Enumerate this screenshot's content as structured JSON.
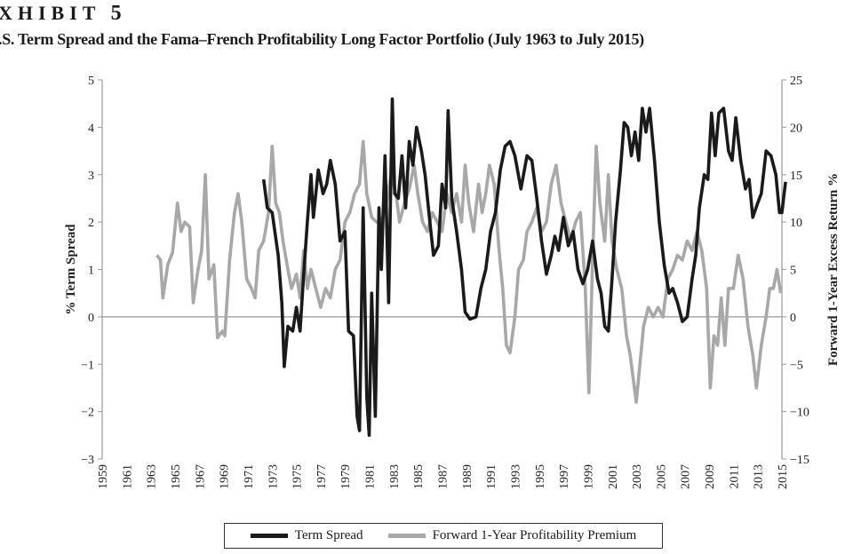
{
  "header": {
    "exhibit_label": "XHIBIT",
    "exhibit_number": "5",
    "title": ".S. Term Spread and the Fama–French Profitability Long Factor Portfolio (July 1963 to July 2015)"
  },
  "colors": {
    "term_spread": "#1a1a1a",
    "profitability": "#a8a8a8",
    "axis": "#999999"
  },
  "chart_data": {
    "type": "line",
    "title": "",
    "xlabel": "",
    "ylabel_left": "% Term Spread",
    "ylabel_right": "Forward 1-Year Excess Return %",
    "xlim": [
      1959,
      2015
    ],
    "ylim_left": [
      -3,
      5
    ],
    "ylim_right": [
      -15,
      25
    ],
    "x_ticks": [
      "1959",
      "1961",
      "1963",
      "1965",
      "1967",
      "1969",
      "1971",
      "1973",
      "1975",
      "1977",
      "1979",
      "1981",
      "1983",
      "1985",
      "1987",
      "1989",
      "1991",
      "1993",
      "1995",
      "1997",
      "1999",
      "2001",
      "2003",
      "2005",
      "2007",
      "2009",
      "2011",
      "2013",
      "2015"
    ],
    "y_ticks_left": [
      "5",
      "4",
      "3",
      "2",
      "1",
      "0",
      "−1",
      "−2",
      "−3"
    ],
    "y_ticks_right": [
      "25",
      "20",
      "15",
      "10",
      "5",
      "0",
      "−5",
      "−10",
      "−15"
    ],
    "grid": false,
    "zero_line": true,
    "legend_placement": "bottom",
    "series": [
      {
        "name": "Term Spread",
        "axis": "left",
        "color": "#1a1a1a",
        "points": [
          [
            1972.3,
            2.9
          ],
          [
            1972.6,
            2.3
          ],
          [
            1973.0,
            2.2
          ],
          [
            1973.5,
            1.3
          ],
          [
            1973.8,
            0.3
          ],
          [
            1974.0,
            -1.05
          ],
          [
            1974.3,
            -0.2
          ],
          [
            1974.7,
            -0.3
          ],
          [
            1975.0,
            0.2
          ],
          [
            1975.3,
            -0.3
          ],
          [
            1975.6,
            0.9
          ],
          [
            1975.9,
            2.0
          ],
          [
            1976.2,
            3.0
          ],
          [
            1976.4,
            2.1
          ],
          [
            1976.8,
            3.1
          ],
          [
            1977.2,
            2.6
          ],
          [
            1977.5,
            2.8
          ],
          [
            1977.8,
            3.3
          ],
          [
            1978.2,
            2.8
          ],
          [
            1978.6,
            1.6
          ],
          [
            1979.0,
            1.8
          ],
          [
            1979.3,
            -0.3
          ],
          [
            1979.7,
            -0.4
          ],
          [
            1980.0,
            -2.1
          ],
          [
            1980.2,
            -2.4
          ],
          [
            1980.5,
            2.3
          ],
          [
            1980.8,
            -1.7
          ],
          [
            1981.0,
            -2.5
          ],
          [
            1981.2,
            0.5
          ],
          [
            1981.5,
            -2.1
          ],
          [
            1981.8,
            2.3
          ],
          [
            1982.0,
            1.0
          ],
          [
            1982.3,
            3.4
          ],
          [
            1982.6,
            0.3
          ],
          [
            1982.9,
            4.6
          ],
          [
            1983.1,
            2.6
          ],
          [
            1983.4,
            2.5
          ],
          [
            1983.7,
            3.4
          ],
          [
            1984.0,
            2.3
          ],
          [
            1984.3,
            3.7
          ],
          [
            1984.6,
            3.2
          ],
          [
            1984.9,
            4.0
          ],
          [
            1985.3,
            3.5
          ],
          [
            1985.6,
            3.0
          ],
          [
            1986.0,
            2.0
          ],
          [
            1986.3,
            1.3
          ],
          [
            1986.7,
            1.5
          ],
          [
            1987.0,
            2.8
          ],
          [
            1987.3,
            2.3
          ],
          [
            1987.5,
            4.35
          ],
          [
            1987.8,
            2.5
          ],
          [
            1988.2,
            1.8
          ],
          [
            1988.6,
            1.0
          ],
          [
            1988.9,
            0.1
          ],
          [
            1989.3,
            -0.05
          ],
          [
            1989.8,
            0.0
          ],
          [
            1990.2,
            0.6
          ],
          [
            1990.6,
            1.0
          ],
          [
            1991.0,
            1.8
          ],
          [
            1991.4,
            2.2
          ],
          [
            1991.8,
            3.1
          ],
          [
            1992.2,
            3.6
          ],
          [
            1992.6,
            3.7
          ],
          [
            1993.0,
            3.4
          ],
          [
            1993.5,
            2.7
          ],
          [
            1994.0,
            3.4
          ],
          [
            1994.4,
            3.3
          ],
          [
            1994.8,
            2.5
          ],
          [
            1995.2,
            1.6
          ],
          [
            1995.6,
            0.9
          ],
          [
            1996.0,
            1.3
          ],
          [
            1996.3,
            1.7
          ],
          [
            1996.6,
            1.4
          ],
          [
            1997.0,
            2.1
          ],
          [
            1997.4,
            1.5
          ],
          [
            1997.8,
            1.8
          ],
          [
            1998.2,
            1.0
          ],
          [
            1998.6,
            0.7
          ],
          [
            1999.0,
            1.0
          ],
          [
            1999.4,
            1.6
          ],
          [
            1999.8,
            0.8
          ],
          [
            2000.1,
            0.5
          ],
          [
            2000.4,
            -0.2
          ],
          [
            2000.7,
            -0.3
          ],
          [
            2001.0,
            0.8
          ],
          [
            2001.3,
            2.0
          ],
          [
            2001.7,
            3.1
          ],
          [
            2002.0,
            4.1
          ],
          [
            2002.3,
            4.0
          ],
          [
            2002.6,
            3.4
          ],
          [
            2002.9,
            3.9
          ],
          [
            2003.2,
            3.3
          ],
          [
            2003.5,
            4.4
          ],
          [
            2003.8,
            3.9
          ],
          [
            2004.1,
            4.4
          ],
          [
            2004.5,
            3.3
          ],
          [
            2004.9,
            2.0
          ],
          [
            2005.3,
            1.1
          ],
          [
            2005.7,
            0.5
          ],
          [
            2006.0,
            0.6
          ],
          [
            2006.4,
            0.3
          ],
          [
            2006.8,
            -0.1
          ],
          [
            2007.2,
            0.0
          ],
          [
            2007.6,
            0.8
          ],
          [
            2007.9,
            1.3
          ],
          [
            2008.2,
            2.3
          ],
          [
            2008.6,
            3.0
          ],
          [
            2008.9,
            2.9
          ],
          [
            2009.2,
            4.3
          ],
          [
            2009.5,
            3.4
          ],
          [
            2009.8,
            4.3
          ],
          [
            2010.2,
            4.4
          ],
          [
            2010.6,
            3.5
          ],
          [
            2010.9,
            3.3
          ],
          [
            2011.2,
            4.2
          ],
          [
            2011.6,
            3.3
          ],
          [
            2012.0,
            2.7
          ],
          [
            2012.3,
            2.9
          ],
          [
            2012.6,
            2.1
          ],
          [
            2013.0,
            2.4
          ],
          [
            2013.3,
            2.6
          ],
          [
            2013.7,
            3.5
          ],
          [
            2014.1,
            3.4
          ],
          [
            2014.5,
            3.0
          ],
          [
            2014.8,
            2.2
          ],
          [
            2015.0,
            2.2
          ],
          [
            2015.3,
            2.85
          ]
        ]
      },
      {
        "name": "Forward 1-Year Profitability Premium",
        "axis": "right",
        "color": "#a8a8a8",
        "points": [
          [
            1963.5,
            6.5
          ],
          [
            1963.8,
            6
          ],
          [
            1964.0,
            2
          ],
          [
            1964.4,
            5.5
          ],
          [
            1964.8,
            6.8
          ],
          [
            1965.2,
            12
          ],
          [
            1965.5,
            9
          ],
          [
            1965.8,
            10
          ],
          [
            1966.2,
            9.5
          ],
          [
            1966.5,
            1.5
          ],
          [
            1966.9,
            5
          ],
          [
            1967.2,
            7
          ],
          [
            1967.5,
            15
          ],
          [
            1967.8,
            4
          ],
          [
            1968.2,
            5.5
          ],
          [
            1968.5,
            -2.2
          ],
          [
            1968.9,
            -1.5
          ],
          [
            1969.1,
            -2
          ],
          [
            1969.5,
            6
          ],
          [
            1969.9,
            11
          ],
          [
            1970.2,
            13
          ],
          [
            1970.5,
            10
          ],
          [
            1970.9,
            4
          ],
          [
            1971.3,
            3
          ],
          [
            1971.6,
            2
          ],
          [
            1971.9,
            7
          ],
          [
            1972.3,
            8
          ],
          [
            1972.7,
            11
          ],
          [
            1973.0,
            18
          ],
          [
            1973.3,
            12
          ],
          [
            1973.6,
            11
          ],
          [
            1973.9,
            8
          ],
          [
            1974.3,
            5
          ],
          [
            1974.6,
            3
          ],
          [
            1975.0,
            4.5
          ],
          [
            1975.3,
            2
          ],
          [
            1975.6,
            7
          ],
          [
            1975.9,
            3
          ],
          [
            1976.2,
            5
          ],
          [
            1976.6,
            3
          ],
          [
            1977.0,
            1
          ],
          [
            1977.4,
            3
          ],
          [
            1977.8,
            2
          ],
          [
            1978.2,
            5
          ],
          [
            1978.6,
            6
          ],
          [
            1979.0,
            10
          ],
          [
            1979.4,
            11
          ],
          [
            1979.8,
            13
          ],
          [
            1980.2,
            14
          ],
          [
            1980.5,
            18.5
          ],
          [
            1980.8,
            13
          ],
          [
            1981.2,
            10.5
          ],
          [
            1981.6,
            10
          ],
          [
            1982.0,
            10
          ],
          [
            1982.4,
            12
          ],
          [
            1982.8,
            15
          ],
          [
            1983.2,
            13
          ],
          [
            1983.5,
            10
          ],
          [
            1983.9,
            12
          ],
          [
            1984.3,
            13.5
          ],
          [
            1984.7,
            16
          ],
          [
            1985.0,
            13
          ],
          [
            1985.4,
            10
          ],
          [
            1985.8,
            9
          ],
          [
            1986.2,
            11
          ],
          [
            1986.6,
            10
          ],
          [
            1987.0,
            9
          ],
          [
            1987.4,
            13
          ],
          [
            1987.8,
            11
          ],
          [
            1988.2,
            13
          ],
          [
            1988.6,
            10
          ],
          [
            1988.9,
            16
          ],
          [
            1989.2,
            12
          ],
          [
            1989.6,
            9
          ],
          [
            1990.0,
            14
          ],
          [
            1990.3,
            11
          ],
          [
            1990.6,
            13
          ],
          [
            1990.9,
            16
          ],
          [
            1991.3,
            14
          ],
          [
            1991.7,
            7
          ],
          [
            1992.0,
            3
          ],
          [
            1992.3,
            -3
          ],
          [
            1992.6,
            -3.8
          ],
          [
            1993.0,
            0
          ],
          [
            1993.3,
            5
          ],
          [
            1993.7,
            6
          ],
          [
            1994.0,
            9
          ],
          [
            1994.4,
            10
          ],
          [
            1994.8,
            11.5
          ],
          [
            1995.2,
            9
          ],
          [
            1995.6,
            10
          ],
          [
            1996.0,
            14
          ],
          [
            1996.4,
            16
          ],
          [
            1996.8,
            12
          ],
          [
            1997.2,
            10
          ],
          [
            1997.6,
            8
          ],
          [
            1998.0,
            10
          ],
          [
            1998.4,
            11
          ],
          [
            1998.8,
            3
          ],
          [
            1999.1,
            -8
          ],
          [
            1999.4,
            6
          ],
          [
            1999.7,
            18
          ],
          [
            2000.0,
            12
          ],
          [
            2000.4,
            8
          ],
          [
            2000.7,
            15
          ],
          [
            2001.0,
            8
          ],
          [
            2001.4,
            5
          ],
          [
            2001.8,
            3
          ],
          [
            2002.2,
            -2
          ],
          [
            2002.5,
            -4
          ],
          [
            2002.8,
            -7
          ],
          [
            2003.0,
            -9
          ],
          [
            2003.3,
            -5
          ],
          [
            2003.6,
            -1
          ],
          [
            2004.0,
            1
          ],
          [
            2004.4,
            0
          ],
          [
            2004.8,
            1
          ],
          [
            2005.2,
            0
          ],
          [
            2005.6,
            4
          ],
          [
            2006.0,
            5
          ],
          [
            2006.4,
            6.5
          ],
          [
            2006.8,
            6
          ],
          [
            2007.2,
            8
          ],
          [
            2007.6,
            7
          ],
          [
            2008.0,
            9
          ],
          [
            2008.4,
            7
          ],
          [
            2008.8,
            3
          ],
          [
            2009.1,
            -7.5
          ],
          [
            2009.4,
            -2
          ],
          [
            2009.7,
            -3
          ],
          [
            2010.0,
            2
          ],
          [
            2010.3,
            -3
          ],
          [
            2010.6,
            3
          ],
          [
            2011.0,
            3
          ],
          [
            2011.4,
            6.5
          ],
          [
            2011.8,
            4
          ],
          [
            2012.2,
            -1
          ],
          [
            2012.6,
            -4
          ],
          [
            2012.9,
            -7.5
          ],
          [
            2013.3,
            -3
          ],
          [
            2013.7,
            0
          ],
          [
            2014.0,
            3
          ],
          [
            2014.3,
            3
          ],
          [
            2014.6,
            5
          ],
          [
            2014.9,
            2.5
          ]
        ]
      }
    ]
  },
  "legend": {
    "items": [
      {
        "label": "Term Spread",
        "color": "#1a1a1a"
      },
      {
        "label": "Forward 1-Year Profitability Premium",
        "color": "#a8a8a8"
      }
    ]
  }
}
